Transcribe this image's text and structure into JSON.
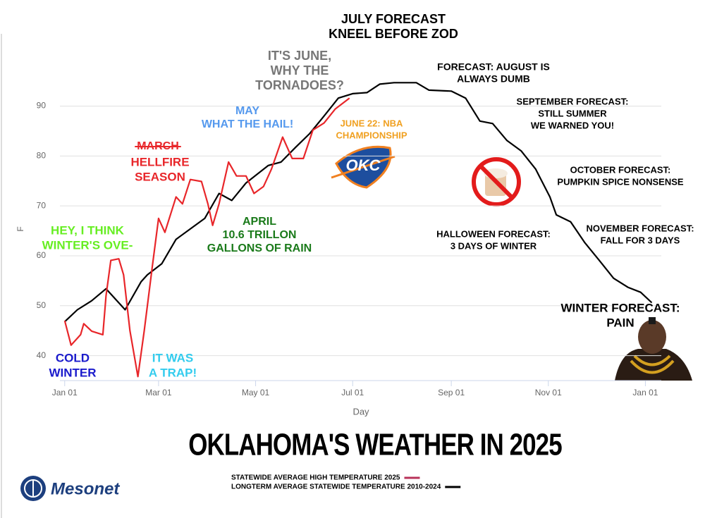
{
  "chart_data": {
    "type": "line",
    "title": "OKLAHOMA'S WEATHER IN 2025",
    "x_label": "Day",
    "y_label": "F",
    "xlim": [
      -3,
      375
    ],
    "ylim": [
      35,
      97
    ],
    "xticks": [
      {
        "value": 0,
        "label": "Jan 01"
      },
      {
        "value": 59,
        "label": "Mar 01"
      },
      {
        "value": 120,
        "label": "May 01"
      },
      {
        "value": 181,
        "label": "Jul 01"
      },
      {
        "value": 243,
        "label": "Sep 01"
      },
      {
        "value": 304,
        "label": "Nov 01"
      },
      {
        "value": 365,
        "label": "Jan 01"
      }
    ],
    "yticks": [
      40,
      50,
      60,
      70,
      80,
      90
    ],
    "grid": true,
    "series": [
      {
        "name": "STATEWIDE AVERAGE HIGH TEMPERATURE 2025",
        "color": "#e8262a",
        "legend_color": "#b8325a",
        "x": [
          0,
          4,
          10,
          12,
          17,
          24,
          26,
          29,
          34,
          37,
          41,
          46,
          50,
          55,
          59,
          63,
          70,
          74,
          79,
          86,
          90,
          93,
          97,
          103,
          108,
          114,
          119,
          125,
          130,
          137,
          143,
          150,
          156,
          163,
          170,
          179
        ],
        "values": [
          47,
          42.1,
          44.2,
          46.4,
          44.9,
          44.2,
          52,
          59.1,
          59.4,
          56.2,
          45,
          35.8,
          45,
          57.7,
          67.5,
          64.7,
          71.8,
          70.4,
          75.3,
          74.9,
          70.4,
          66.1,
          70.4,
          78.8,
          76,
          76,
          72.5,
          73.9,
          77.4,
          83.8,
          79.5,
          79.5,
          85.2,
          86.6,
          89.4,
          91.6
        ]
      },
      {
        "name": "LONGTERM AVERAGE STATEWIDE TEMPERATURE 2010-2024",
        "color": "#000000",
        "legend_color": "#000000",
        "x": [
          0,
          8,
          17,
          26,
          38,
          48,
          52,
          61,
          70,
          79,
          88,
          97,
          105,
          114,
          128,
          136,
          145,
          154,
          163,
          172,
          181,
          190,
          198,
          207,
          221,
          229,
          243,
          252,
          261,
          269,
          278,
          287,
          296,
          305,
          309,
          318,
          327,
          336,
          345,
          354,
          362,
          369
        ],
        "values": [
          46.8,
          49.2,
          51,
          53.4,
          49.2,
          54.8,
          56.2,
          58.4,
          63.3,
          65.4,
          67.5,
          72.5,
          71.1,
          74.6,
          78.1,
          78.8,
          81.7,
          84.5,
          88,
          91.6,
          92.5,
          92.7,
          94.4,
          94.7,
          94.7,
          93.2,
          93,
          91.6,
          87,
          86.5,
          83.1,
          81,
          77.4,
          71.8,
          68.2,
          66.8,
          62.6,
          59.1,
          55.5,
          53.7,
          52.7,
          50.6
        ]
      }
    ],
    "annotations": [
      {
        "lines": [
          "JULY FORECAST",
          "KNEEL BEFORE ZOD"
        ],
        "color": "#000000"
      },
      {
        "lines": [
          "IT'S JUNE,",
          "WHY THE",
          "TORNADOES?"
        ],
        "color": "#777777"
      },
      {
        "lines": [
          "FORECAST: AUGUST IS",
          "ALWAYS DUMB"
        ],
        "color": "#000000"
      },
      {
        "lines": [
          "SEPTEMBER FORECAST:",
          "STILL SUMMER",
          "WE WARNED YOU!"
        ],
        "color": "#000000"
      },
      {
        "lines": [
          "MAY",
          "WHAT THE HAIL!"
        ],
        "color": "#5599ee"
      },
      {
        "lines": [
          "JUNE 22: NBA",
          "CHAMPIONSHIP"
        ],
        "color": "#f0a020"
      },
      {
        "lines": [
          "MARCH"
        ],
        "color": "#e8262a"
      },
      {
        "lines": [
          "HELLFIRE",
          "SEASON"
        ],
        "color": "#e8262a"
      },
      {
        "lines": [
          "OCTOBER FORECAST:",
          "PUMPKIN SPICE NONSENSE"
        ],
        "color": "#000000"
      },
      {
        "lines": [
          "APRIL",
          "10.6 TRILLON",
          "GALLONS OF RAIN"
        ],
        "color": "#1a7a1a"
      },
      {
        "lines": [
          "NOVEMBER FORECAST:",
          "FALL FOR 3 DAYS"
        ],
        "color": "#000000"
      },
      {
        "lines": [
          "HALLOWEEN FORECAST:",
          "3 DAYS OF WINTER"
        ],
        "color": "#000000"
      },
      {
        "lines": [
          "HEY, I THINK",
          "WINTER'S OVE-"
        ],
        "color": "#66ee22"
      },
      {
        "lines": [
          "WINTER FORECAST:",
          "PAIN"
        ],
        "color": "#000000"
      },
      {
        "lines": [
          "COLD",
          "WINTER"
        ],
        "color": "#1a1acc"
      },
      {
        "lines": [
          "IT WAS",
          "A TRAP!"
        ],
        "color": "#33ccee"
      }
    ],
    "team_logo": "OKC",
    "source_logo": "Mesonet"
  }
}
